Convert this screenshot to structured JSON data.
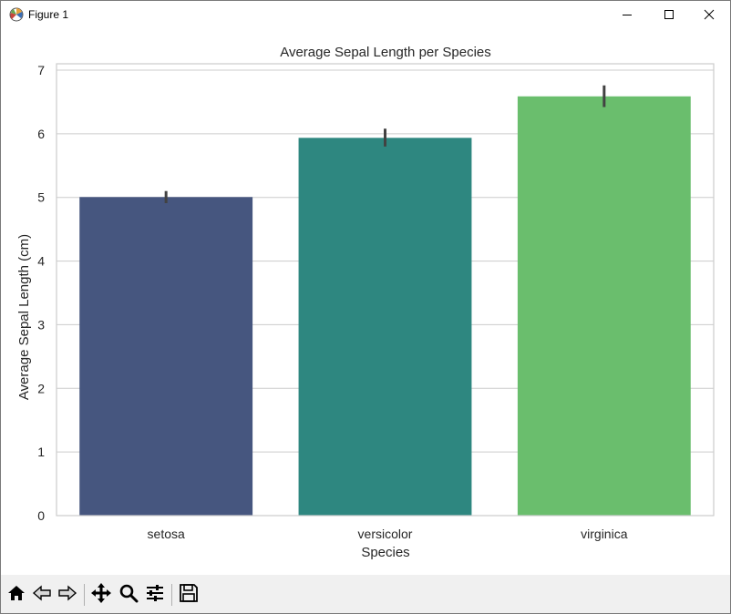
{
  "window": {
    "title": "Figure 1",
    "icons": {
      "app": "matplotlib-figure-icon",
      "minimize": "minimize-icon",
      "maximize": "maximize-icon",
      "close": "close-icon"
    }
  },
  "toolbar": {
    "buttons": [
      {
        "name": "home-icon"
      },
      {
        "name": "back-arrow-icon"
      },
      {
        "name": "forward-arrow-icon"
      },
      {
        "name": "pan-move-icon"
      },
      {
        "name": "zoom-magnifier-icon"
      },
      {
        "name": "configure-subplots-icon"
      },
      {
        "name": "save-floppy-icon"
      }
    ]
  },
  "chart_data": {
    "type": "bar",
    "title": "Average Sepal Length per Species",
    "xlabel": "Species",
    "ylabel": "Average Sepal Length (cm)",
    "categories": [
      "setosa",
      "versicolor",
      "virginica"
    ],
    "values": [
      5.006,
      5.936,
      6.588
    ],
    "error_bars": [
      [
        4.91,
        5.1
      ],
      [
        5.8,
        6.08
      ],
      [
        6.42,
        6.76
      ]
    ],
    "colors": [
      "#46567f",
      "#2e8780",
      "#6abe6d"
    ],
    "error_color": "#424242",
    "ylim": [
      0,
      7.1
    ],
    "yticks": [
      0,
      1,
      2,
      3,
      4,
      5,
      6,
      7
    ],
    "grid": "y",
    "grid_color": "#cccccc"
  }
}
